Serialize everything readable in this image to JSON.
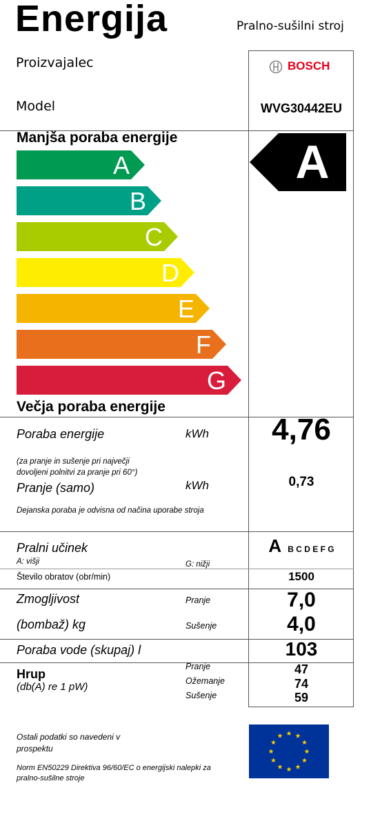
{
  "header": {
    "title": "Energija",
    "appliance_type": "Pralno-sušilni stroj"
  },
  "manufacturer": {
    "label": "Proizvajalec",
    "brand": "BOSCH"
  },
  "model": {
    "label": "Model",
    "value": "WVG30442EU"
  },
  "scale": {
    "top_label": "Manjša poraba energije",
    "bottom_label": "Večja poraba energije",
    "classes": [
      {
        "letter": "A",
        "color": "#009a52"
      },
      {
        "letter": "B",
        "color": "#00a087"
      },
      {
        "letter": "C",
        "color": "#a8cc00"
      },
      {
        "letter": "D",
        "color": "#ffed00"
      },
      {
        "letter": "E",
        "color": "#f4b400"
      },
      {
        "letter": "F",
        "color": "#e8701c"
      },
      {
        "letter": "G",
        "color": "#d81c3b"
      }
    ],
    "rating": "A"
  },
  "energy": {
    "label": "Poraba energije",
    "unit": "kWh",
    "value": "4,76",
    "note": "(za pranje in sušenje pri največji dovoljeni polnitvi za pranje pri 60°)",
    "wash_label": "Pranje (samo)",
    "wash_unit": "kWh",
    "wash_value": "0,73",
    "usage_note": "Dejanska poraba je odvisna od načina uporabe stroja"
  },
  "washing_performance": {
    "label": "Pralni učinek",
    "high": "A: višji",
    "low": "G: nižji",
    "rating": "A",
    "others": "B C D E F G"
  },
  "spin": {
    "label": "Število obratov (obr/min)",
    "value": "1500"
  },
  "capacity": {
    "label": "Zmogljivost",
    "label2": "(bombaž) kg",
    "wash_label": "Pranje",
    "wash_value": "7,0",
    "dry_label": "Sušenje",
    "dry_value": "4,0"
  },
  "water": {
    "label": "Poraba vode (skupaj) l",
    "value": "103"
  },
  "noise": {
    "label": "Hrup",
    "sublabel": "(db(A) re 1 pW)",
    "rows": [
      {
        "label": "Pranje",
        "value": "47"
      },
      {
        "label": "Ožemanje",
        "value": "74"
      },
      {
        "label": "Sušenje",
        "value": "59"
      }
    ]
  },
  "footer": {
    "info": "Ostali podatki so navedeni v prospektu",
    "norm": "Norm EN50229 Direktiva 96/60/EC o energijski nalepki za pralno-sušilne stroje"
  },
  "colors": {
    "eu_blue": "#003399",
    "eu_star": "#ffcc00"
  }
}
